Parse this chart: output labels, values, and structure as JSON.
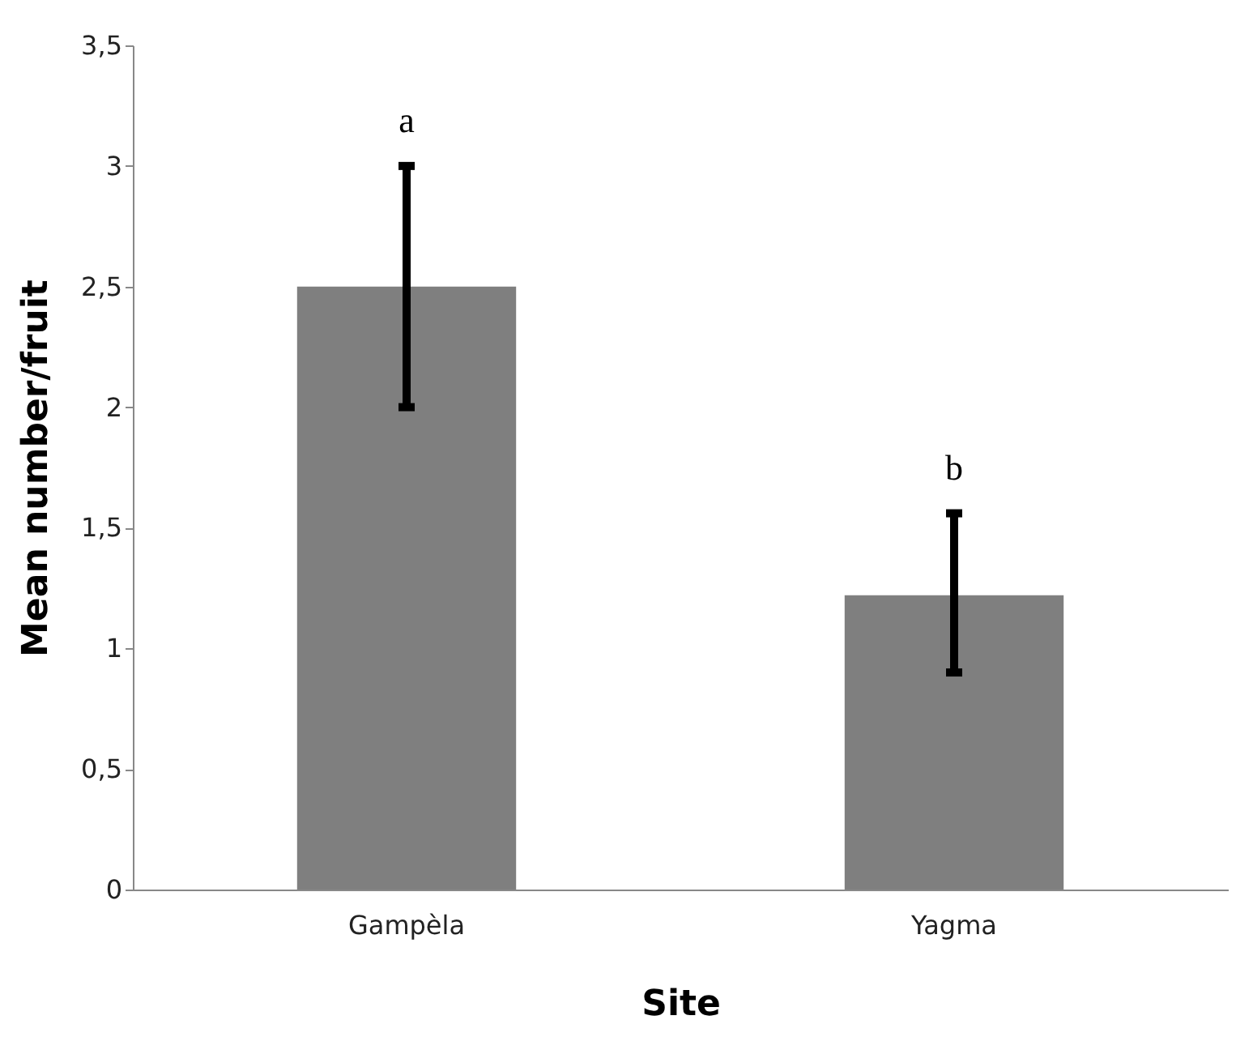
{
  "chart_data": {
    "type": "bar",
    "xlabel": "Site",
    "ylabel": "Mean number/fruit",
    "categories": [
      "Gampèla",
      "Yagma"
    ],
    "values": [
      2.5,
      1.22
    ],
    "errors": [
      [
        2.0,
        3.0
      ],
      [
        0.9,
        1.56
      ]
    ],
    "color": "#7f7f7f",
    "ylim": [
      0,
      3.5
    ],
    "yticks": [
      0,
      {
        "value": 0.5,
        "label": "0,5"
      },
      1,
      {
        "value": 1.5,
        "label": "1,5"
      },
      2,
      {
        "value": 2.5,
        "label": "2,5"
      },
      3,
      {
        "value": 3.5,
        "label": "3,5"
      }
    ],
    "annotations": [
      "a",
      "b"
    ],
    "grid": false
  }
}
